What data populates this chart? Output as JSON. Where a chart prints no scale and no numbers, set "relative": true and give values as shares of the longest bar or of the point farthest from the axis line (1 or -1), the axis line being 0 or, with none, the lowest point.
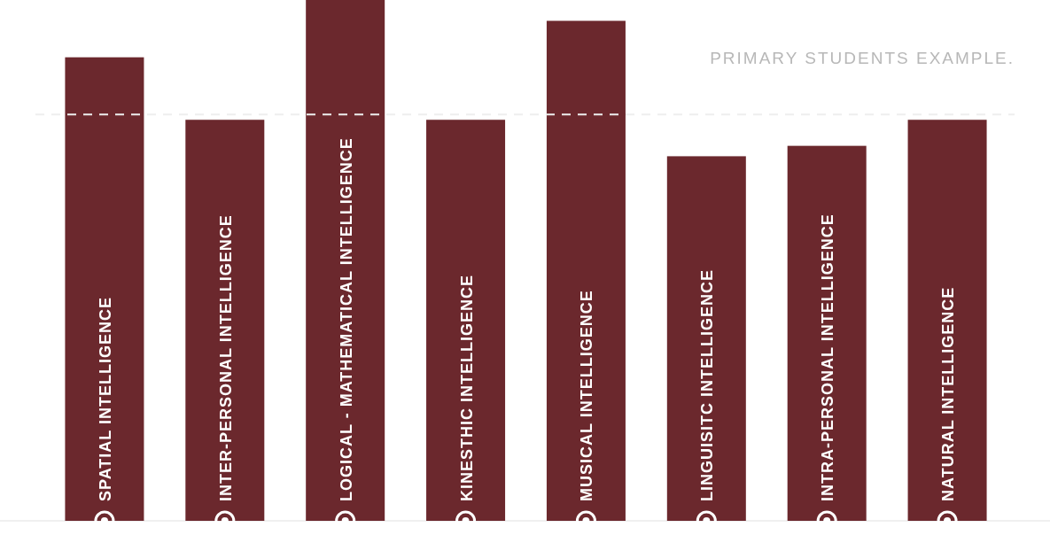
{
  "chart_data": {
    "type": "bar",
    "relative": true,
    "categories": [
      "SPATIAL INTELLIGENCE",
      "INTER-PERSONAL INTELLIGENCE",
      "LOGICAL - MATHEMATICAL INTELLIGENCE",
      "KINESTHIC INTELLIGENCE",
      "MUSICAL INTELLIGENCE",
      "LINGUISITC INTELLIGENCE",
      "INTRA-PERSONAL INTELLIGENCE",
      "NATURAL INTELLIGENCE"
    ],
    "values": [
      0.89,
      0.77,
      1,
      0.77,
      0.96,
      0.7,
      0.72,
      0.77
    ],
    "color": "#6b282d",
    "ref_lines": [
      {
        "axis": "y",
        "value": 0.78,
        "color": "#eeeeee",
        "line_style": "dashed"
      }
    ],
    "annotations": [
      "PRIMARY STUDENTS EXAMPLE."
    ]
  }
}
